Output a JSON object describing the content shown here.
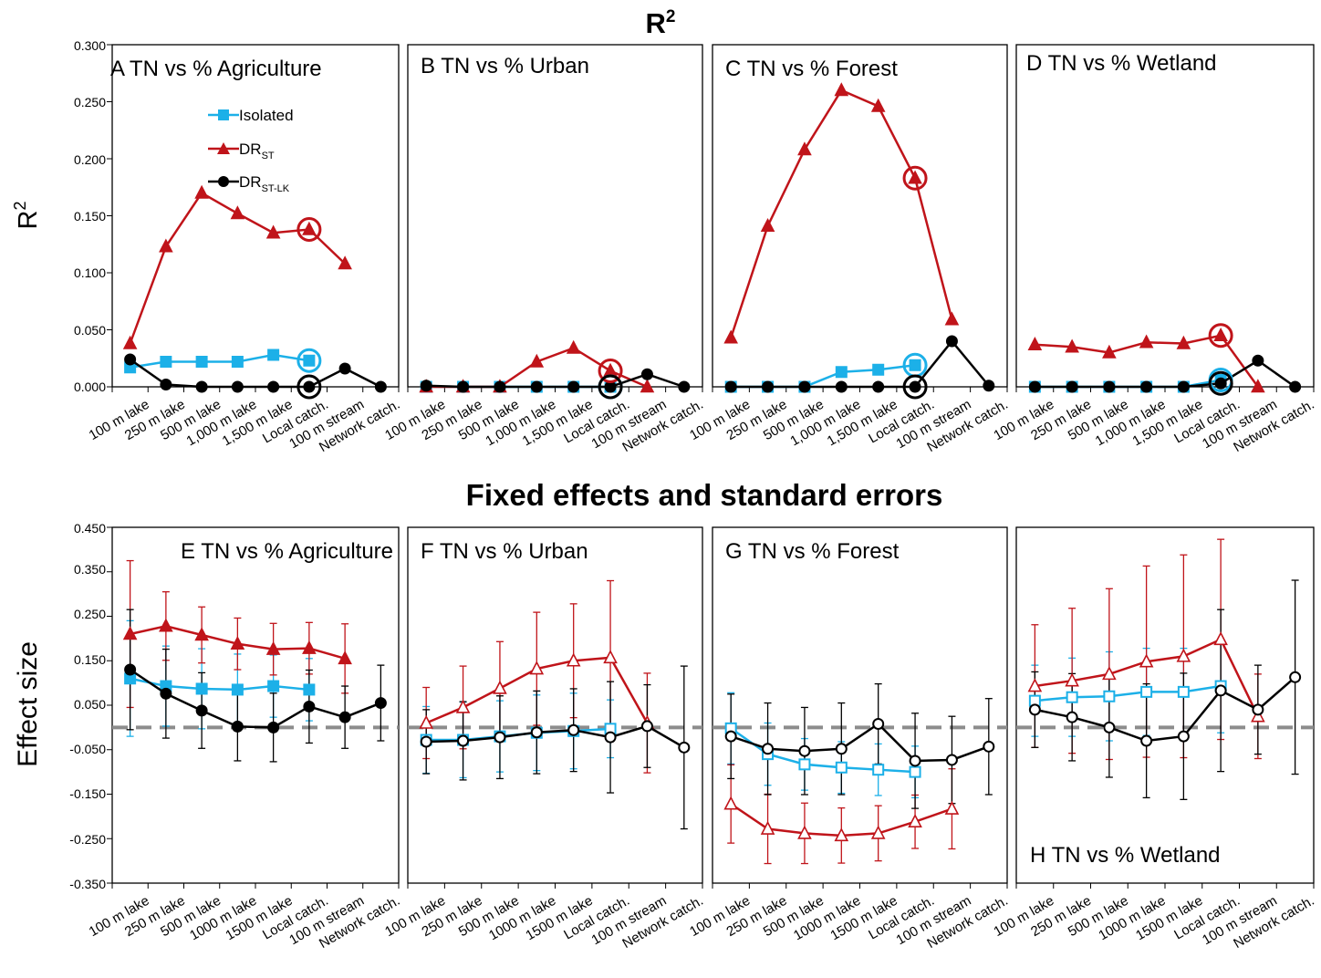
{
  "figure": {
    "top_title_main": "R",
    "top_title_sup": "2",
    "bottom_title": "Fixed effects and standard errors",
    "top_ylabel_main": "R",
    "top_ylabel_sup": "2",
    "bottom_ylabel": "Effect size",
    "top_yticks": [
      "0.000",
      "0.050",
      "0.100",
      "0.150",
      "0.200",
      "0.250",
      "0.300"
    ],
    "bottom_yticks": [
      "-0.350",
      "-0.250",
      "-0.150",
      "-0.050",
      "0.050",
      "0.150",
      "0.250",
      "0.350",
      "0.450"
    ],
    "legend": {
      "isolated": "Isolated",
      "drst_main": "DR",
      "drst_sub": "ST",
      "drstlk_main": "DR",
      "drstlk_sub": "ST-LK"
    },
    "colors": {
      "isolated": "#1cb0e8",
      "drst": "#c0141a",
      "drstlk": "#000000",
      "reference_line": "#8c8c8c"
    }
  },
  "chart_data": [
    {
      "type": "line",
      "panel": "A",
      "title": "A  TN vs % Agriculture",
      "categories": [
        "100 m lake",
        "250 m lake",
        "500 m lake",
        "1,000 m lake",
        "1,500 m lake",
        "Local catch.",
        "100 m stream",
        "Network catch."
      ],
      "ylim": [
        0,
        0.3
      ],
      "series": [
        {
          "name": "Isolated",
          "values": [
            0.017,
            0.022,
            0.022,
            0.022,
            0.028,
            0.023,
            null,
            null
          ]
        },
        {
          "name": "DR_ST",
          "values": [
            0.038,
            0.123,
            0.17,
            0.152,
            0.135,
            0.138,
            0.108,
            null
          ]
        },
        {
          "name": "DR_ST-LK",
          "values": [
            0.024,
            0.002,
            0.0,
            0.0,
            0.0,
            0.0,
            0.016,
            0.0
          ]
        }
      ],
      "circled_category": "Local catch."
    },
    {
      "type": "line",
      "panel": "B",
      "title": "B  TN vs % Urban",
      "categories": [
        "100 m lake",
        "250 m lake",
        "500 m lake",
        "1,000 m lake",
        "1,500 m lake",
        "Local catch.",
        "100 m stream",
        "Network catch."
      ],
      "ylim": [
        0,
        0.3
      ],
      "series": [
        {
          "name": "Isolated",
          "values": [
            0.0,
            0.0,
            0.0,
            0.0,
            0.0,
            0.0,
            null,
            null
          ]
        },
        {
          "name": "DR_ST",
          "values": [
            0.0,
            0.0,
            0.0,
            0.022,
            0.034,
            0.014,
            0.0,
            null
          ]
        },
        {
          "name": "DR_ST-LK",
          "values": [
            0.001,
            0.0,
            0.0,
            0.0,
            0.0,
            0.0,
            0.011,
            0.0
          ]
        }
      ],
      "circled_category": "Local catch."
    },
    {
      "type": "line",
      "panel": "C",
      "title": "C  TN vs % Forest",
      "categories": [
        "100 m lake",
        "250 m lake",
        "500 m lake",
        "1,000 m lake",
        "1,500 m lake",
        "Local catch.",
        "100 m stream",
        "Network catch."
      ],
      "ylim": [
        0,
        0.3
      ],
      "series": [
        {
          "name": "Isolated",
          "values": [
            0.0,
            0.0,
            0.0,
            0.013,
            0.015,
            0.019,
            null,
            null
          ]
        },
        {
          "name": "DR_ST",
          "values": [
            0.043,
            0.141,
            0.208,
            0.26,
            0.246,
            0.183,
            0.059,
            null
          ]
        },
        {
          "name": "DR_ST-LK",
          "values": [
            0.0,
            0.0,
            0.0,
            0.0,
            0.0,
            0.0,
            0.04,
            0.001
          ]
        }
      ],
      "circled_category": "Local catch."
    },
    {
      "type": "line",
      "panel": "D",
      "title": "D TN vs % Wetland",
      "categories": [
        "100 m lake",
        "250 m lake",
        "500 m lake",
        "1,000 m lake",
        "1,500 m lake",
        "Local catch.",
        "100 m stream",
        "Network catch."
      ],
      "ylim": [
        0,
        0.3
      ],
      "series": [
        {
          "name": "Isolated",
          "values": [
            0.0,
            0.0,
            0.0,
            0.0,
            0.0,
            0.006,
            null,
            null
          ]
        },
        {
          "name": "DR_ST",
          "values": [
            0.037,
            0.035,
            0.03,
            0.039,
            0.038,
            0.045,
            0.0,
            null
          ]
        },
        {
          "name": "DR_ST-LK",
          "values": [
            0.0,
            0.0,
            0.0,
            0.0,
            0.0,
            0.003,
            0.023,
            0.0
          ]
        }
      ],
      "circled_category": "Local catch."
    },
    {
      "type": "line",
      "panel": "E",
      "title": "E TN vs % Agriculture",
      "categories": [
        "100 m lake",
        "250 m lake",
        "500 m lake",
        "1000 m lake",
        "1500 m lake",
        "Local catch.",
        "100 m stream",
        "Network catch."
      ],
      "ylim": [
        -0.35,
        0.45
      ],
      "reference_line": 0,
      "markers": "filled",
      "series": [
        {
          "name": "Isolated",
          "values": [
            0.11,
            0.093,
            0.087,
            0.085,
            0.093,
            0.085,
            null,
            null
          ],
          "errors": [
            0.13,
            0.09,
            0.09,
            0.08,
            0.07,
            0.07,
            null,
            null
          ]
        },
        {
          "name": "DR_ST",
          "values": [
            0.21,
            0.228,
            0.208,
            0.188,
            0.176,
            0.178,
            0.155,
            null
          ],
          "errors": [
            0.165,
            0.077,
            0.063,
            0.058,
            0.058,
            0.058,
            0.078,
            null
          ]
        },
        {
          "name": "DR_ST-LK",
          "values": [
            0.13,
            0.076,
            0.038,
            0.002,
            0.0,
            0.047,
            0.023,
            0.055
          ],
          "errors": [
            0.135,
            0.1,
            0.085,
            0.077,
            0.077,
            0.082,
            0.07,
            0.085
          ]
        }
      ]
    },
    {
      "type": "line",
      "panel": "F",
      "title": "F TN vs % Urban",
      "categories": [
        "100 m lake",
        "250 m lake",
        "500 m lake",
        "1000 m lake",
        "1500 m lake",
        "Local catch.",
        "100 m stream",
        "Network catch."
      ],
      "ylim": [
        -0.35,
        0.45
      ],
      "reference_line": 0,
      "markers": "open",
      "series": [
        {
          "name": "Isolated",
          "values": [
            -0.028,
            -0.028,
            -0.02,
            -0.012,
            -0.008,
            -0.003,
            null,
            null
          ],
          "errors": [
            0.075,
            0.085,
            0.08,
            0.085,
            0.085,
            0.065,
            null,
            null
          ]
        },
        {
          "name": "DR_ST",
          "values": [
            0.01,
            0.045,
            0.088,
            0.132,
            0.15,
            0.157,
            0.01,
            null
          ],
          "errors": [
            0.08,
            0.093,
            0.105,
            0.127,
            0.128,
            0.173,
            0.112,
            null
          ]
        },
        {
          "name": "DR_ST-LK",
          "values": [
            -0.032,
            -0.03,
            -0.022,
            -0.011,
            -0.006,
            -0.022,
            0.003,
            -0.045
          ],
          "errors": [
            0.072,
            0.088,
            0.093,
            0.093,
            0.093,
            0.125,
            0.093,
            0.183
          ]
        }
      ]
    },
    {
      "type": "line",
      "panel": "G",
      "title": "G TN vs % Forest",
      "categories": [
        "100 m lake",
        "250 m lake",
        "500 m lake",
        "1000 m lake",
        "1500 m lake",
        "Local catch.",
        "100 m stream",
        "Network catch."
      ],
      "ylim": [
        -0.35,
        0.45
      ],
      "reference_line": 0,
      "markers": "open",
      "series": [
        {
          "name": "Isolated",
          "values": [
            -0.002,
            -0.06,
            -0.083,
            -0.09,
            -0.095,
            -0.1,
            null,
            null
          ],
          "errors": [
            0.08,
            0.07,
            0.058,
            0.058,
            0.058,
            0.058,
            null,
            null
          ]
        },
        {
          "name": "DR_ST",
          "values": [
            -0.172,
            -0.228,
            -0.238,
            -0.243,
            -0.238,
            -0.212,
            -0.183,
            null
          ],
          "errors": [
            0.088,
            0.078,
            0.068,
            0.062,
            0.062,
            0.06,
            0.09,
            null
          ]
        },
        {
          "name": "DR_ST-LK",
          "values": [
            -0.02,
            -0.048,
            -0.053,
            -0.048,
            0.008,
            -0.075,
            -0.073,
            -0.043
          ],
          "errors": [
            0.095,
            0.103,
            0.098,
            0.103,
            0.09,
            0.107,
            0.098,
            0.108
          ]
        }
      ]
    },
    {
      "type": "line",
      "panel": "H",
      "title": "H TN vs % Wetland",
      "categories": [
        "100 m lake",
        "250 m lake",
        "500 m lake",
        "1000 m lake",
        "1500 m lake",
        "Local catch.",
        "100 m stream",
        "Network catch."
      ],
      "ylim": [
        -0.35,
        0.45
      ],
      "reference_line": 0,
      "markers": "open",
      "series": [
        {
          "name": "Isolated",
          "values": [
            0.06,
            0.068,
            0.07,
            0.08,
            0.08,
            0.093,
            null,
            null
          ],
          "errors": [
            0.08,
            0.088,
            0.1,
            0.098,
            0.098,
            0.105,
            null,
            null
          ]
        },
        {
          "name": "DR_ST",
          "values": [
            0.093,
            0.105,
            0.12,
            0.148,
            0.16,
            0.198,
            0.025,
            null
          ],
          "errors": [
            0.138,
            0.163,
            0.192,
            0.215,
            0.228,
            0.225,
            0.095,
            null
          ]
        },
        {
          "name": "DR_ST-LK",
          "values": [
            0.04,
            0.023,
            0.0,
            -0.03,
            -0.02,
            0.083,
            0.04,
            0.113
          ],
          "errors": [
            0.085,
            0.098,
            0.112,
            0.128,
            0.142,
            0.182,
            0.1,
            0.218
          ]
        }
      ]
    }
  ]
}
